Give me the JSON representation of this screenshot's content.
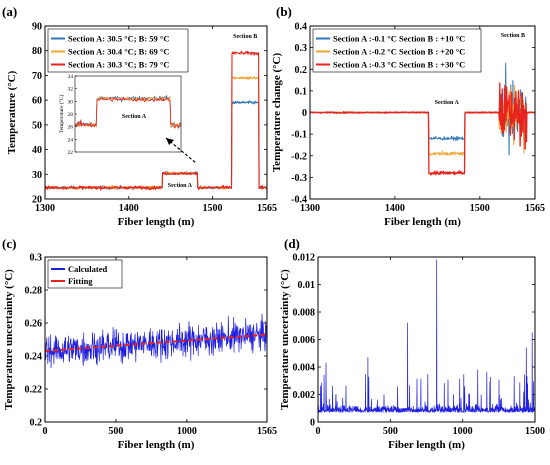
{
  "chart_data": [
    {
      "panel": "(a)",
      "type": "line",
      "xlabel": "Fiber length (m)",
      "ylabel": "Temperature (°C)",
      "xlim": [
        1300,
        1565
      ],
      "ylim": [
        20,
        90
      ],
      "xticks": [
        "1300",
        "1400",
        "1500",
        "1565"
      ],
      "yticks": [
        "20",
        "30",
        "40",
        "50",
        "60",
        "70",
        "80",
        "90"
      ],
      "legend_position": "top-left",
      "series": [
        {
          "name": "Section A: 30.5 °C; B: 59 °C",
          "color": "#2f76b8",
          "baseline": 24.6,
          "section_a": 30.5,
          "section_b": 59
        },
        {
          "name": "Section A: 30.4 °C; B: 69 °C",
          "color": "#f0a430",
          "baseline": 24.6,
          "section_a": 30.4,
          "section_b": 69
        },
        {
          "name": "Section A: 30.3 °C; B: 79 °C",
          "color": "#e8231f",
          "baseline": 24.6,
          "section_a": 30.3,
          "section_b": 79
        }
      ],
      "section_a_range": [
        1440,
        1482
      ],
      "section_b_range": [
        1523,
        1555
      ],
      "annotations": [
        "Section B",
        "Section A",
        "Section A"
      ],
      "inset": {
        "ylabel": "Temperature (°C)",
        "yticks": [
          "22",
          "24",
          "26",
          "28",
          "30",
          "32",
          "34"
        ],
        "ylim": [
          22,
          34
        ]
      }
    },
    {
      "panel": "(b)",
      "type": "line",
      "xlabel": "Fiber length (m)",
      "ylabel": "Temperature change (°C)",
      "xlim": [
        1300,
        1565
      ],
      "ylim": [
        -0.4,
        0.4
      ],
      "xticks": [
        "1300",
        "1400",
        "1500",
        "1565"
      ],
      "yticks": [
        "-0.4",
        "-0.3",
        "-0.2",
        "-0.1",
        "0",
        "0.1",
        "0.2",
        "0.3",
        "0.4"
      ],
      "legend_position": "top-left",
      "series": [
        {
          "name": "Section A :-0.1 °C Section B : +10 °C",
          "color": "#2f76b8",
          "section_a": -0.12
        },
        {
          "name": "Section A :-0.2 °C Section B : +20 °C",
          "color": "#f0a430",
          "section_a": -0.19
        },
        {
          "name": "Section A :-0.3 °C Section B : +30 °C",
          "color": "#e8231f",
          "section_a": -0.28
        }
      ],
      "section_a_range": [
        1440,
        1482
      ],
      "section_b_range": [
        1523,
        1555
      ],
      "annotations": [
        "Section B",
        "Section A"
      ]
    },
    {
      "panel": "(c)",
      "type": "line",
      "xlabel": "Fiber length (m)",
      "ylabel": "Temperature uncertainty (°C)",
      "xlim": [
        0,
        1565
      ],
      "ylim": [
        0.2,
        0.3
      ],
      "xticks": [
        "0",
        "500",
        "1000",
        "1565"
      ],
      "yticks": [
        "0.2",
        "0.22",
        "0.24",
        "0.26",
        "0.28",
        "0.3"
      ],
      "legend_position": "top-left",
      "series": [
        {
          "name": "Calculated",
          "color": "#1f1fe0",
          "mean_start": 0.243,
          "mean_end": 0.253
        },
        {
          "name": "Fitting",
          "color": "#e8231f",
          "start": 0.243,
          "end": 0.253
        }
      ]
    },
    {
      "panel": "(d)",
      "type": "line",
      "xlabel": "Fiber length (m)",
      "ylabel": "Temperature uncertainty (°C)",
      "xlim": [
        0,
        1500
      ],
      "ylim": [
        0,
        0.012
      ],
      "xticks": [
        "0",
        "500",
        "1000",
        "1500"
      ],
      "yticks": [
        "0",
        "0.002",
        "0.004",
        "0.006",
        "0.008",
        "0.01",
        "0.012"
      ],
      "series": [
        {
          "color": "#1f1fe0",
          "baseline": 0.0007,
          "peaks": [
            [
              620,
              0.0072
            ],
            [
              820,
              0.0118
            ],
            [
              1480,
              0.0065
            ],
            [
              345,
              0.0047
            ],
            [
              55,
              0.0043
            ],
            [
              1440,
              0.0054
            ]
          ]
        }
      ]
    }
  ]
}
